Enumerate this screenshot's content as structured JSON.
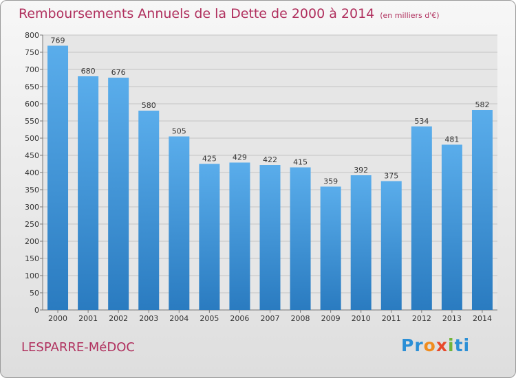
{
  "header": {
    "title": "Remboursements Annuels de la Dette de 2000 à 2014",
    "subtitle": "(en milliers d'€)"
  },
  "footer": {
    "town": "LESPARRE-MéDOC",
    "logo": [
      "Pr",
      "o",
      "x",
      "i",
      "ti"
    ]
  },
  "colors": {
    "bar_top": "#5aadeb",
    "bar_bottom": "#2a7bc0",
    "text_accent": "#b0305e"
  },
  "chart_data": {
    "type": "bar",
    "title": "Remboursements Annuels de la Dette de 2000 à 2014",
    "subtitle": "(en milliers d'€)",
    "categories": [
      "2000",
      "2001",
      "2002",
      "2003",
      "2004",
      "2005",
      "2006",
      "2007",
      "2008",
      "2009",
      "2010",
      "2011",
      "2012",
      "2013",
      "2014"
    ],
    "values": [
      769,
      680,
      676,
      580,
      505,
      425,
      429,
      422,
      415,
      359,
      392,
      375,
      534,
      481,
      582
    ],
    "xlabel": "",
    "ylabel": "",
    "ylim": [
      0,
      800
    ],
    "yticks": [
      0,
      50,
      100,
      150,
      200,
      250,
      300,
      350,
      400,
      450,
      500,
      550,
      600,
      650,
      700,
      750,
      800
    ],
    "grid": true,
    "legend": "none"
  }
}
